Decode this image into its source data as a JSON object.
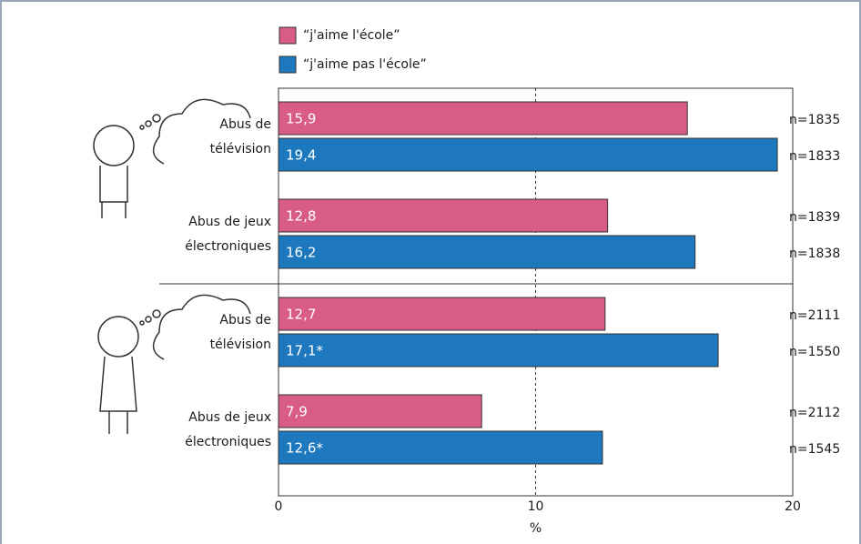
{
  "chart_data": {
    "type": "hbar",
    "categories": [
      [
        "Abus de",
        "télévision"
      ],
      [
        "Abus de jeux",
        "électroniques"
      ],
      [
        "Abus de",
        "télévision"
      ],
      [
        "Abus de jeux",
        "électroniques"
      ]
    ],
    "series": [
      {
        "name": "“j'aime l'école”",
        "color": "#d95b88",
        "values": [
          15.9,
          12.8,
          12.7,
          7.9
        ],
        "value_labels": [
          "15,9",
          "12,8",
          "12,7",
          "7,9"
        ],
        "n_labels": [
          "n=1835",
          "n=1839",
          "n=2111",
          "n=2112"
        ]
      },
      {
        "name": "“j'aime pas l'école”",
        "color": "#1d78be",
        "values": [
          19.4,
          16.2,
          17.1,
          12.6
        ],
        "value_labels": [
          "19,4",
          "16,2",
          "17,1*",
          "12,6*"
        ],
        "n_labels": [
          "n=1833",
          "n=1838",
          "n=1550",
          "n=1545"
        ]
      }
    ],
    "xlim": [
      0,
      20
    ],
    "xticks": [
      0,
      10,
      20
    ],
    "xlabel": "%",
    "grid": true
  }
}
